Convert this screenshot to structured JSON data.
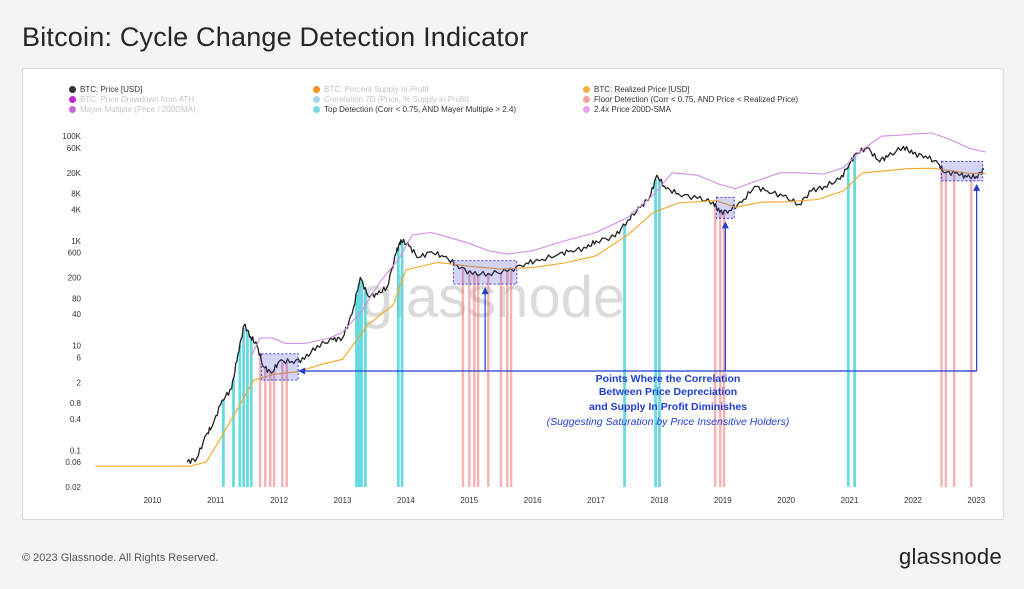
{
  "page": {
    "title": "Bitcoin: Cycle Change Detection Indicator",
    "copyright": "© 2023 Glassnode. All Rights Reserved.",
    "brand": "glassnode",
    "watermark": "glassnode"
  },
  "colors": {
    "price": "#222222",
    "realized": "#f5a623",
    "sma24": "#d58ae6",
    "top": "#4fd3dc",
    "floor": "#f07f7f",
    "box": "#3d3ddb",
    "annotation": "#1f3fd1"
  },
  "legend": [
    {
      "label": "BTC: Price [USD]",
      "color": "#333333",
      "faded": false
    },
    {
      "label": "BTC: Percent Supply In Profit",
      "color": "#f7931a",
      "faded": true
    },
    {
      "label": "BTC: Realized Price [USD]",
      "color": "#f5b041",
      "faded": false
    },
    {
      "label": "BTC: Price Drawdown from ATH",
      "color": "#c026d3",
      "faded": true
    },
    {
      "label": "Correlation 7D (Price, % Supply in Profit)",
      "color": "#a8d4f5",
      "faded": true
    },
    {
      "label": "Floor Detection (Corr < 0.75, AND Price < Realized Price)",
      "color": "#f4a0a0",
      "faded": false
    },
    {
      "label": "Mayer Multiple (Price / 200DMA)",
      "color": "#c36ad9",
      "faded": true
    },
    {
      "label": "Top Detection (Corr < 0.75, AND Mayer Multiple > 2.4)",
      "color": "#7ad8e0",
      "faded": false
    },
    {
      "label": "2.4x Price 200D-SMA",
      "color": "#e2a6ef",
      "faded": false
    }
  ],
  "annotation": {
    "line1": "Points Where the Correlation",
    "line2": "Between Price Depreciation",
    "line3": "and Supply In Profit Diminishes",
    "line4": "(Suggesting Saturation by Price Insensitive Holders)"
  },
  "chart_data": {
    "type": "line",
    "yscale": "log",
    "ylim": [
      0.02,
      150000
    ],
    "xlim": [
      2009.0,
      2023.2
    ],
    "y_ticks": [
      {
        "v": 100000,
        "label": "100K"
      },
      {
        "v": 60000,
        "label": "60K"
      },
      {
        "v": 20000,
        "label": "20K"
      },
      {
        "v": 8000,
        "label": "8K"
      },
      {
        "v": 4000,
        "label": "4K"
      },
      {
        "v": 1000,
        "label": "1K"
      },
      {
        "v": 600,
        "label": "600"
      },
      {
        "v": 200,
        "label": "200"
      },
      {
        "v": 80,
        "label": "80"
      },
      {
        "v": 40,
        "label": "40"
      },
      {
        "v": 10,
        "label": "10"
      },
      {
        "v": 6,
        "label": "6"
      },
      {
        "v": 2,
        "label": "2"
      },
      {
        "v": 0.8,
        "label": "0.8"
      },
      {
        "v": 0.4,
        "label": "0.4"
      },
      {
        "v": 0.1,
        "label": "0.1"
      },
      {
        "v": 0.06,
        "label": "0.06"
      },
      {
        "v": 0.02,
        "label": "0.02"
      }
    ],
    "x_ticks": [
      {
        "v": 2010,
        "label": "2010"
      },
      {
        "v": 2011,
        "label": "2011"
      },
      {
        "v": 2012,
        "label": "2012"
      },
      {
        "v": 2013,
        "label": "2013"
      },
      {
        "v": 2014,
        "label": "2014"
      },
      {
        "v": 2015,
        "label": "2015"
      },
      {
        "v": 2016,
        "label": "2016"
      },
      {
        "v": 2017,
        "label": "2017"
      },
      {
        "v": 2018,
        "label": "2018"
      },
      {
        "v": 2019,
        "label": "2019"
      },
      {
        "v": 2020,
        "label": "2020"
      },
      {
        "v": 2021,
        "label": "2021"
      },
      {
        "v": 2022,
        "label": "2022"
      },
      {
        "v": 2023,
        "label": "2023"
      }
    ],
    "series": [
      {
        "name": "BTC: Price [USD]",
        "key": "price",
        "points": [
          [
            2010.55,
            0.06
          ],
          [
            2010.7,
            0.07
          ],
          [
            2010.85,
            0.2
          ],
          [
            2010.95,
            0.3
          ],
          [
            2011.1,
            0.9
          ],
          [
            2011.25,
            1.5
          ],
          [
            2011.35,
            7
          ],
          [
            2011.45,
            25
          ],
          [
            2011.55,
            15
          ],
          [
            2011.65,
            10
          ],
          [
            2011.75,
            4
          ],
          [
            2011.88,
            3
          ],
          [
            2012.0,
            5
          ],
          [
            2012.2,
            5
          ],
          [
            2012.4,
            5.5
          ],
          [
            2012.6,
            10
          ],
          [
            2012.85,
            13
          ],
          [
            2013.0,
            14
          ],
          [
            2013.15,
            40
          ],
          [
            2013.28,
            200
          ],
          [
            2013.4,
            90
          ],
          [
            2013.55,
            95
          ],
          [
            2013.7,
            130
          ],
          [
            2013.85,
            600
          ],
          [
            2013.92,
            1050
          ],
          [
            2014.05,
            800
          ],
          [
            2014.2,
            480
          ],
          [
            2014.4,
            620
          ],
          [
            2014.6,
            500
          ],
          [
            2014.8,
            350
          ],
          [
            2015.05,
            230
          ],
          [
            2015.3,
            240
          ],
          [
            2015.6,
            260
          ],
          [
            2015.9,
            380
          ],
          [
            2016.1,
            420
          ],
          [
            2016.4,
            550
          ],
          [
            2016.6,
            650
          ],
          [
            2016.85,
            730
          ],
          [
            2017.0,
            1000
          ],
          [
            2017.3,
            1200
          ],
          [
            2017.5,
            2500
          ],
          [
            2017.7,
            4400
          ],
          [
            2017.85,
            7000
          ],
          [
            2017.96,
            18000
          ],
          [
            2018.1,
            10000
          ],
          [
            2018.3,
            8000
          ],
          [
            2018.6,
            6500
          ],
          [
            2018.85,
            5500
          ],
          [
            2018.95,
            3500
          ],
          [
            2019.1,
            3800
          ],
          [
            2019.3,
            5500
          ],
          [
            2019.5,
            11000
          ],
          [
            2019.7,
            9000
          ],
          [
            2019.95,
            7200
          ],
          [
            2020.2,
            5000
          ],
          [
            2020.4,
            9000
          ],
          [
            2020.6,
            11000
          ],
          [
            2020.85,
            15000
          ],
          [
            2021.0,
            30000
          ],
          [
            2021.1,
            47000
          ],
          [
            2021.28,
            60000
          ],
          [
            2021.45,
            35000
          ],
          [
            2021.6,
            40000
          ],
          [
            2021.85,
            64000
          ],
          [
            2022.0,
            46000
          ],
          [
            2022.2,
            42000
          ],
          [
            2022.4,
            30000
          ],
          [
            2022.5,
            20000
          ],
          [
            2022.7,
            20000
          ],
          [
            2022.85,
            16500
          ],
          [
            2023.0,
            17000
          ],
          [
            2023.12,
            23000
          ]
        ]
      },
      {
        "name": "BTC: Realized Price [USD]",
        "key": "realized",
        "points": [
          [
            2009.1,
            0.05
          ],
          [
            2010.6,
            0.05
          ],
          [
            2010.85,
            0.06
          ],
          [
            2011.0,
            0.12
          ],
          [
            2011.3,
            0.5
          ],
          [
            2011.6,
            2.2
          ],
          [
            2011.9,
            2.8
          ],
          [
            2012.3,
            3.2
          ],
          [
            2012.7,
            4.5
          ],
          [
            2013.0,
            5.5
          ],
          [
            2013.4,
            25
          ],
          [
            2013.8,
            60
          ],
          [
            2014.0,
            280
          ],
          [
            2014.5,
            390
          ],
          [
            2015.0,
            330
          ],
          [
            2015.5,
            290
          ],
          [
            2016.0,
            310
          ],
          [
            2016.5,
            380
          ],
          [
            2017.0,
            520
          ],
          [
            2017.5,
            1300
          ],
          [
            2017.9,
            3500
          ],
          [
            2018.3,
            5300
          ],
          [
            2018.9,
            5900
          ],
          [
            2019.2,
            4400
          ],
          [
            2019.6,
            5500
          ],
          [
            2020.0,
            5600
          ],
          [
            2020.5,
            6200
          ],
          [
            2020.9,
            9000
          ],
          [
            2021.2,
            20000
          ],
          [
            2021.6,
            22000
          ],
          [
            2021.9,
            24000
          ],
          [
            2022.3,
            24500
          ],
          [
            2022.6,
            22000
          ],
          [
            2022.9,
            19500
          ],
          [
            2023.15,
            19500
          ]
        ]
      },
      {
        "name": "2.4x Price 200D-SMA",
        "key": "sma24",
        "points": [
          [
            2011.55,
            6
          ],
          [
            2011.7,
            14
          ],
          [
            2011.9,
            14
          ],
          [
            2012.1,
            11
          ],
          [
            2012.4,
            11
          ],
          [
            2012.8,
            14
          ],
          [
            2013.0,
            18
          ],
          [
            2013.3,
            45
          ],
          [
            2013.6,
            170
          ],
          [
            2013.9,
            480
          ],
          [
            2014.1,
            1300
          ],
          [
            2014.4,
            1450
          ],
          [
            2014.7,
            1150
          ],
          [
            2015.0,
            900
          ],
          [
            2015.3,
            650
          ],
          [
            2015.6,
            560
          ],
          [
            2016.0,
            650
          ],
          [
            2016.5,
            1000
          ],
          [
            2017.0,
            1450
          ],
          [
            2017.5,
            2800
          ],
          [
            2017.9,
            7500
          ],
          [
            2018.2,
            20000
          ],
          [
            2018.6,
            18000
          ],
          [
            2018.95,
            12000
          ],
          [
            2019.2,
            10000
          ],
          [
            2019.6,
            15000
          ],
          [
            2019.9,
            20000
          ],
          [
            2020.2,
            20000
          ],
          [
            2020.6,
            19000
          ],
          [
            2020.9,
            25000
          ],
          [
            2021.2,
            55000
          ],
          [
            2021.5,
            100000
          ],
          [
            2021.8,
            105000
          ],
          [
            2022.0,
            110000
          ],
          [
            2022.3,
            115000
          ],
          [
            2022.6,
            85000
          ],
          [
            2022.9,
            58000
          ],
          [
            2023.15,
            50000
          ]
        ]
      }
    ],
    "top_detection": [
      2011.12,
      2011.28,
      2011.38,
      2011.44,
      2011.5,
      2011.56,
      2013.22,
      2013.26,
      2013.3,
      2013.36,
      2013.88,
      2013.94,
      2017.45,
      2017.94,
      2018.0,
      2020.98,
      2021.08
    ],
    "floor_detection": [
      2011.7,
      2011.78,
      2011.86,
      2011.92,
      2012.05,
      2012.12,
      2014.9,
      2015.0,
      2015.08,
      2015.14,
      2015.3,
      2015.5,
      2015.6,
      2015.66,
      2018.88,
      2018.96,
      2019.02,
      2022.45,
      2022.52,
      2022.65,
      2022.92
    ],
    "saturation_zones": [
      {
        "x0": 2011.72,
        "x1": 2012.3,
        "y0": 2.2,
        "y1": 7
      },
      {
        "x0": 2014.75,
        "x1": 2015.75,
        "y0": 150,
        "y1": 420
      },
      {
        "x0": 2018.9,
        "x1": 2019.18,
        "y0": 2700,
        "y1": 6800
      },
      {
        "x0": 2022.45,
        "x1": 2023.1,
        "y0": 14000,
        "y1": 33000
      }
    ]
  }
}
